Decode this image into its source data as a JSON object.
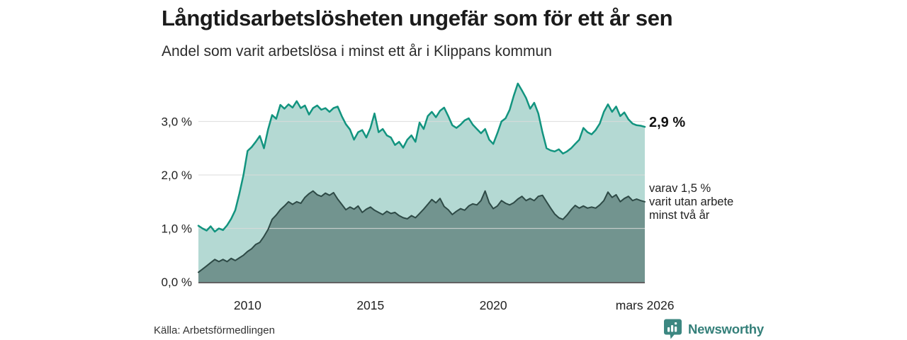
{
  "header": {
    "title": "Långtidsarbetslösheten ungefär som för ett år sen",
    "subtitle": "Andel som varit arbetslösa i minst ett år i Klippans kommun"
  },
  "annotations": {
    "latest_value": "2,9 %",
    "secondary_line1": "varav 1,5 %",
    "secondary_line2": "varit utan arbete",
    "secondary_line3": "minst två år"
  },
  "footer": {
    "source": "Källa: Arbetsförmedlingen",
    "brand": "Newsworthy"
  },
  "colors": {
    "title_text": "#1b1b1b",
    "body_text": "#222222",
    "grid": "rgba(218,218,218,0.75)",
    "axis": "#2e2e2e",
    "brand_teal": "#35807a"
  },
  "chart_data": {
    "type": "area",
    "x_range": [
      2008.0,
      2026.1667
    ],
    "y_range": [
      0,
      4
    ],
    "x_start": 2008.0,
    "x_step": 0.166667,
    "grid_color": "rgba(218,218,218,0.78)",
    "axis_color": "#2e2e2e",
    "yticks": [
      {
        "value": 0,
        "label": "0,0 %"
      },
      {
        "value": 1,
        "label": "1,0 %"
      },
      {
        "value": 2,
        "label": "2,0 %"
      },
      {
        "value": 3,
        "label": "3,0 %"
      }
    ],
    "xticks": [
      {
        "value": 2010,
        "label": "2010"
      },
      {
        "value": 2015,
        "label": "2015"
      },
      {
        "value": 2020,
        "label": "2020"
      },
      {
        "value": 2026.17,
        "label": "mars 2026"
      }
    ],
    "series": [
      {
        "name": "minst ett år",
        "line": "#12947f",
        "fill": "#b4d9d3",
        "line_width": 2.5,
        "latest": 2.9,
        "values": [
          1.05,
          1.0,
          0.96,
          1.04,
          0.94,
          1.0,
          0.97,
          1.06,
          1.18,
          1.34,
          1.65,
          2.0,
          2.45,
          2.52,
          2.62,
          2.73,
          2.5,
          2.85,
          3.12,
          3.05,
          3.31,
          3.24,
          3.32,
          3.26,
          3.38,
          3.25,
          3.3,
          3.13,
          3.25,
          3.3,
          3.22,
          3.25,
          3.18,
          3.25,
          3.28,
          3.1,
          2.95,
          2.85,
          2.66,
          2.8,
          2.84,
          2.7,
          2.88,
          3.15,
          2.8,
          2.86,
          2.74,
          2.7,
          2.56,
          2.62,
          2.51,
          2.66,
          2.74,
          2.62,
          2.98,
          2.86,
          3.1,
          3.18,
          3.08,
          3.2,
          3.26,
          3.1,
          2.93,
          2.88,
          2.94,
          3.02,
          3.06,
          2.94,
          2.86,
          2.78,
          2.86,
          2.66,
          2.58,
          2.78,
          3.0,
          3.06,
          3.22,
          3.48,
          3.71,
          3.58,
          3.44,
          3.24,
          3.35,
          3.15,
          2.8,
          2.5,
          2.46,
          2.44,
          2.48,
          2.4,
          2.44,
          2.5,
          2.58,
          2.66,
          2.88,
          2.8,
          2.76,
          2.84,
          2.96,
          3.18,
          3.32,
          3.18,
          3.28,
          3.1,
          3.17,
          3.04,
          2.96,
          2.93,
          2.92,
          2.9
        ]
      },
      {
        "name": "minst två år",
        "line": "#2e4a46",
        "fill": "#72948f",
        "line_width": 2,
        "latest": 1.5,
        "values": [
          0.18,
          0.24,
          0.3,
          0.36,
          0.42,
          0.38,
          0.42,
          0.38,
          0.44,
          0.4,
          0.45,
          0.5,
          0.57,
          0.62,
          0.7,
          0.74,
          0.85,
          0.98,
          1.17,
          1.25,
          1.35,
          1.42,
          1.5,
          1.45,
          1.5,
          1.47,
          1.58,
          1.65,
          1.7,
          1.63,
          1.6,
          1.66,
          1.62,
          1.67,
          1.55,
          1.45,
          1.35,
          1.4,
          1.36,
          1.42,
          1.3,
          1.36,
          1.4,
          1.34,
          1.3,
          1.26,
          1.32,
          1.28,
          1.3,
          1.24,
          1.2,
          1.18,
          1.24,
          1.2,
          1.28,
          1.36,
          1.45,
          1.54,
          1.48,
          1.56,
          1.41,
          1.35,
          1.26,
          1.32,
          1.37,
          1.34,
          1.42,
          1.46,
          1.44,
          1.52,
          1.7,
          1.48,
          1.37,
          1.42,
          1.52,
          1.47,
          1.44,
          1.48,
          1.55,
          1.6,
          1.52,
          1.56,
          1.52,
          1.6,
          1.62,
          1.5,
          1.38,
          1.27,
          1.2,
          1.17,
          1.25,
          1.35,
          1.43,
          1.38,
          1.42,
          1.38,
          1.4,
          1.38,
          1.44,
          1.52,
          1.68,
          1.58,
          1.63,
          1.5,
          1.56,
          1.6,
          1.52,
          1.55,
          1.52,
          1.5
        ]
      }
    ]
  }
}
